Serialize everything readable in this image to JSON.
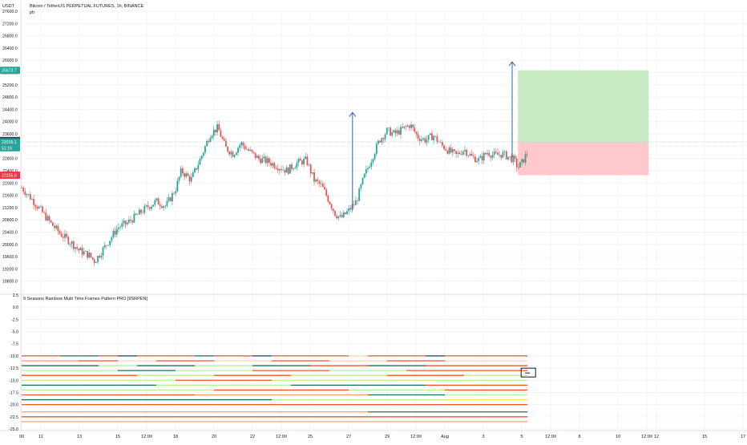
{
  "chart_data": [
    {
      "type": "candlestick",
      "title": "Bitcoin / TetherUS PERPETUAL FUTURES, 1h, BINANCE",
      "subtitle": "ph",
      "yunit": "USDT",
      "ylim": [
        18400,
        27600
      ],
      "y_ticks": [
        18800,
        19200,
        19600,
        20000,
        20400,
        20800,
        21200,
        21600,
        22000,
        22400,
        22800,
        23200,
        23600,
        24000,
        24400,
        24800,
        25200,
        25600,
        26000,
        26400,
        26800,
        27200,
        27600
      ],
      "y_tick_labels": [
        "18800.0",
        "19200.0",
        "19600.0",
        "20000.0",
        "20400.0",
        "20800.0",
        "21200.0",
        "21600.0",
        "22000.0",
        "22400.0",
        "22800.0",
        "23200.0",
        "23600.0",
        "24000.0",
        "24400.0",
        "24800.0",
        "25200.0",
        "25600.0",
        "26000.0",
        "26400.0",
        "26800.0",
        "27200.0",
        "27600.0"
      ],
      "x_ticks": [
        {
          "label": "00",
          "day": 0
        },
        {
          "label": "11",
          "day": 1
        },
        {
          "label": "13",
          "day": 3
        },
        {
          "label": "15",
          "day": 5
        },
        {
          "label": "12:00",
          "day": 6.5
        },
        {
          "label": "18",
          "day": 8
        },
        {
          "label": "20",
          "day": 10
        },
        {
          "label": "22",
          "day": 12
        },
        {
          "label": "12:00",
          "day": 13.5
        },
        {
          "label": "25",
          "day": 15
        },
        {
          "label": "27",
          "day": 17
        },
        {
          "label": "29",
          "day": 19
        },
        {
          "label": "12:00",
          "day": 20.5
        },
        {
          "label": "Aug",
          "day": 22
        },
        {
          "label": "3",
          "day": 24
        },
        {
          "label": "5",
          "day": 26
        },
        {
          "label": "12:00",
          "day": 27.5
        },
        {
          "label": "8",
          "day": 29
        },
        {
          "label": "10",
          "day": 31
        },
        {
          "label": "12:00",
          "day": 32.5
        },
        {
          "label": "12",
          "day": 33
        },
        {
          "label": "15",
          "day": 35.5
        },
        {
          "label": "17",
          "day": 37.5
        }
      ],
      "price_path": [
        [
          0,
          21850
        ],
        [
          0.5,
          21500
        ],
        [
          1,
          21100
        ],
        [
          1.5,
          20700
        ],
        [
          2,
          20350
        ],
        [
          2.5,
          20100
        ],
        [
          3,
          19800
        ],
        [
          3.5,
          19650
        ],
        [
          3.8,
          19450
        ],
        [
          4.3,
          19900
        ],
        [
          5,
          20550
        ],
        [
          5.5,
          20700
        ],
        [
          6,
          20950
        ],
        [
          6.5,
          21200
        ],
        [
          7,
          21400
        ],
        [
          7.5,
          21250
        ],
        [
          8,
          21800
        ],
        [
          8.3,
          22400
        ],
        [
          8.8,
          22100
        ],
        [
          9.3,
          22800
        ],
        [
          9.8,
          23600
        ],
        [
          10.2,
          23800
        ],
        [
          10.6,
          23150
        ],
        [
          11,
          22950
        ],
        [
          11.4,
          23300
        ],
        [
          11.8,
          23050
        ],
        [
          12.3,
          22800
        ],
        [
          12.8,
          22700
        ],
        [
          13.3,
          22550
        ],
        [
          13.8,
          22400
        ],
        [
          14.3,
          22650
        ],
        [
          14.8,
          22750
        ],
        [
          15.2,
          22100
        ],
        [
          15.6,
          21900
        ],
        [
          16,
          21400
        ],
        [
          16.3,
          21000
        ],
        [
          16.6,
          20850
        ],
        [
          17,
          21100
        ],
        [
          17.4,
          21400
        ],
        [
          17.8,
          22200
        ],
        [
          18.2,
          22800
        ],
        [
          18.6,
          23400
        ],
        [
          19,
          23700
        ],
        [
          19.4,
          23600
        ],
        [
          19.8,
          23750
        ],
        [
          20.2,
          23900
        ],
        [
          20.6,
          23500
        ],
        [
          21,
          23400
        ],
        [
          21.4,
          23550
        ],
        [
          21.8,
          23250
        ],
        [
          22.2,
          23050
        ],
        [
          22.6,
          22900
        ],
        [
          23,
          23100
        ],
        [
          23.4,
          22850
        ],
        [
          23.8,
          22750
        ],
        [
          24.2,
          23000
        ],
        [
          24.6,
          22900
        ],
        [
          25,
          22950
        ],
        [
          25.3,
          22850
        ],
        [
          25.6,
          22750
        ],
        [
          25.8,
          22500
        ],
        [
          26,
          22650
        ],
        [
          26.3,
          23000
        ]
      ],
      "price_labels": [
        {
          "label": "25673.7",
          "value": 25673.7,
          "color": "#26a69a"
        },
        {
          "label": "23384.2",
          "value": 23384.2,
          "color": "#363a45"
        },
        {
          "label": "23339.1",
          "value": 23339.1,
          "color": "#26a69a"
        },
        {
          "label": "51:16",
          "value": 23150,
          "color": "#26a69a"
        },
        {
          "label": "22255.8",
          "value": 22255.8,
          "color": "#f23645"
        }
      ],
      "current_price": 23339.1,
      "position": {
        "entry": 23339.1,
        "target": 25673.7,
        "stop": 22255.8,
        "profit_color": "#c8ebc4",
        "loss_color": "#ffc9cc"
      },
      "arrows": [
        {
          "day": 17.2,
          "from": 21100,
          "to": 24300,
          "color": "#2f5fb3"
        },
        {
          "day": 25.5,
          "from": 22850,
          "to": 25950,
          "color": "#2f5fb3"
        }
      ]
    },
    {
      "type": "heatmap",
      "title": "9 Seasons Rainbow Multi Time Frames Pattern PRO [9SRPEN]",
      "ylim": [
        -25,
        2.5
      ],
      "y_ticks": [
        2.5,
        0,
        -2.5,
        -5,
        -7.5,
        -10,
        -12.5,
        -15,
        -17.5,
        -20,
        -22.5,
        -25
      ],
      "y_tick_labels": [
        "2.5",
        "0.0",
        "-2.5",
        "-5.0",
        "-7.5",
        "-10.0",
        "-12.5",
        "-15.0",
        "-17.5",
        "-20.0",
        "-22.5",
        "-25.0"
      ],
      "rows": [
        {
          "y": -10.0,
          "segments": [
            [
              0,
              2,
              "#f0542a"
            ],
            [
              2,
              4,
              "#1e6f5c"
            ],
            [
              4,
              5,
              "#f0542a"
            ],
            [
              5,
              6,
              "#1b3a73"
            ],
            [
              6,
              9,
              "#f0542a"
            ],
            [
              9,
              10,
              "#1e6f5c"
            ],
            [
              10,
              12,
              "#f0542a"
            ],
            [
              12,
              13,
              "#1b3a73"
            ],
            [
              13,
              17,
              "#f0542a"
            ],
            [
              17,
              18,
              "#ffe34d"
            ],
            [
              18,
              21,
              "#f0542a"
            ],
            [
              21,
              22,
              "#1b3a73"
            ],
            [
              22,
              26.3,
              "#f0542a"
            ]
          ]
        },
        {
          "y": -11.0,
          "segments": [
            [
              0,
              3,
              "#ff9a6b"
            ],
            [
              3,
              5,
              "#f0542a"
            ],
            [
              5,
              7,
              "#ffd0c4"
            ],
            [
              7,
              10,
              "#f0542a"
            ],
            [
              10,
              13,
              "#ffd0c4"
            ],
            [
              13,
              16,
              "#f0542a"
            ],
            [
              16,
              19,
              "#ffd0c4"
            ],
            [
              19,
              22,
              "#f0542a"
            ],
            [
              22,
              26.3,
              "#ffd0c4"
            ]
          ]
        },
        {
          "y": -12.0,
          "segments": [
            [
              0,
              4,
              "#1e6f5c"
            ],
            [
              4,
              6,
              "#b7ef9b"
            ],
            [
              6,
              9,
              "#1e6f5c"
            ],
            [
              9,
              12,
              "#b7ef9b"
            ],
            [
              12,
              15,
              "#1e6f5c"
            ],
            [
              15,
              18,
              "#f0542a"
            ],
            [
              18,
              21,
              "#1e6f5c"
            ],
            [
              21,
              26.3,
              "#f0542a"
            ]
          ]
        },
        {
          "y": -13.0,
          "segments": [
            [
              0,
              5,
              "#b7ef9b"
            ],
            [
              5,
              8,
              "#1e6f5c"
            ],
            [
              8,
              12,
              "#b7ef9b"
            ],
            [
              12,
              16,
              "#f0542a"
            ],
            [
              16,
              20,
              "#b7ef9b"
            ],
            [
              20,
              26.3,
              "#f0542a"
            ]
          ]
        },
        {
          "y": -14.0,
          "segments": [
            [
              0,
              6,
              "#f0542a"
            ],
            [
              6,
              10,
              "#b7ef9b"
            ],
            [
              10,
              14,
              "#f0542a"
            ],
            [
              14,
              19,
              "#b7ef9b"
            ],
            [
              19,
              23,
              "#f0542a"
            ],
            [
              23,
              26.3,
              "#b7ef9b"
            ]
          ]
        },
        {
          "y": -15.0,
          "segments": [
            [
              0,
              8,
              "#b7ef9b"
            ],
            [
              8,
              13,
              "#f0542a"
            ],
            [
              13,
              18,
              "#b7ef9b"
            ],
            [
              18,
              26.3,
              "#b7ef9b"
            ]
          ]
        },
        {
          "y": -16.0,
          "segments": [
            [
              0,
              7,
              "#1e6f5c"
            ],
            [
              7,
              14,
              "#b7ef9b"
            ],
            [
              14,
              21,
              "#1e6f5c"
            ],
            [
              21,
              26.3,
              "#f0542a"
            ]
          ]
        },
        {
          "y": -17.0,
          "segments": [
            [
              0,
              10,
              "#b7ef9b"
            ],
            [
              10,
              17,
              "#f0542a"
            ],
            [
              17,
              22,
              "#b7ef9b"
            ],
            [
              22,
              26.3,
              "#f0542a"
            ]
          ]
        },
        {
          "y": -18.0,
          "segments": [
            [
              0,
              9,
              "#f0542a"
            ],
            [
              9,
              18,
              "#ff9a6b"
            ],
            [
              18,
              22,
              "#1e6f5c"
            ],
            [
              22,
              26.3,
              "#b7ef9b"
            ]
          ]
        },
        {
          "y": -19.0,
          "segments": [
            [
              0,
              13,
              "#1e6f5c"
            ],
            [
              13,
              22,
              "#b7ef9b"
            ],
            [
              22,
              26.3,
              "#ffe34d"
            ]
          ]
        },
        {
          "y": -20.0,
          "segments": [
            [
              0,
              15,
              "#f0542a"
            ],
            [
              15,
              26.3,
              "#f0542a"
            ]
          ]
        },
        {
          "y": -21.5,
          "segments": [
            [
              0,
              18,
              "#ff9a6b"
            ],
            [
              18,
              26.3,
              "#1e6f5c"
            ]
          ]
        },
        {
          "y": -22.5,
          "segments": [
            [
              0,
              26.3,
              "#f0542a"
            ]
          ]
        },
        {
          "y": -23.5,
          "segments": [
            [
              0,
              26.3,
              "#ff9a6b"
            ]
          ]
        }
      ],
      "marker": {
        "day": 26.3,
        "y": -13.5
      }
    }
  ],
  "colors": {
    "bull": "#26a69a",
    "bear": "#ef5350",
    "axis_text": "#131722",
    "grid": "#f0f3fa",
    "divider": "#e0e3eb"
  }
}
